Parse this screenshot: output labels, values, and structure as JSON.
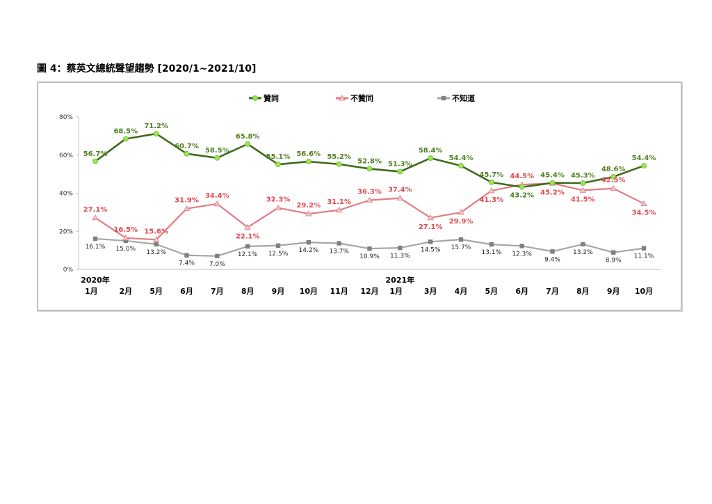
{
  "page_title": "圖 4：蔡英文總統聲望趨勢  [2020/1~2021/10]",
  "chart_data": {
    "type": "line",
    "categories": [
      {
        "line1": "2020年",
        "line2": "1月"
      },
      {
        "line1": "",
        "line2": "2月"
      },
      {
        "line1": "",
        "line2": "5月"
      },
      {
        "line1": "",
        "line2": "6月"
      },
      {
        "line1": "",
        "line2": "7月"
      },
      {
        "line1": "",
        "line2": "8月"
      },
      {
        "line1": "",
        "line2": "9月"
      },
      {
        "line1": "",
        "line2": "10月"
      },
      {
        "line1": "",
        "line2": "11月"
      },
      {
        "line1": "",
        "line2": "12月"
      },
      {
        "line1": "2021年",
        "line2": "1月"
      },
      {
        "line1": "",
        "line2": "3月"
      },
      {
        "line1": "",
        "line2": "4月"
      },
      {
        "line1": "",
        "line2": "5月"
      },
      {
        "line1": "",
        "line2": "6月"
      },
      {
        "line1": "",
        "line2": "7月"
      },
      {
        "line1": "",
        "line2": "8月"
      },
      {
        "line1": "",
        "line2": "9月"
      },
      {
        "line1": "",
        "line2": "10月"
      }
    ],
    "ylim": [
      0,
      80
    ],
    "yticks": [
      "0%",
      "20%",
      "40%",
      "60%",
      "80%"
    ],
    "ytick_values": [
      0,
      20,
      40,
      60,
      80
    ],
    "legend_position": "top",
    "series": [
      {
        "name": "贊同",
        "color": "#3d6b1a",
        "marker_color": "#99e64d",
        "marker": "circle",
        "values": [
          56.7,
          68.5,
          71.2,
          60.7,
          58.5,
          65.8,
          55.1,
          56.6,
          55.2,
          52.8,
          51.3,
          58.4,
          54.4,
          45.7,
          43.2,
          45.4,
          45.3,
          48.6,
          54.4
        ],
        "labels": [
          "56.7%",
          "68.5%",
          "71.2%",
          "60.7%",
          "58.5%",
          "65.8%",
          "55.1%",
          "56.6%",
          "55.2%",
          "52.8%",
          "51.3%",
          "58.4%",
          "54.4%",
          "45.7%",
          "43.2%",
          "45.4%",
          "45.3%",
          "48.6%",
          "54.4%"
        ]
      },
      {
        "name": "不贊同",
        "color": "#e07c82",
        "marker_color": "#f4c7c9",
        "marker": "triangle",
        "values": [
          27.1,
          16.5,
          15.6,
          31.9,
          34.4,
          22.1,
          32.3,
          29.2,
          31.1,
          36.3,
          37.4,
          27.1,
          29.9,
          41.3,
          44.5,
          45.2,
          41.5,
          42.5,
          34.5
        ],
        "labels": [
          "27.1%",
          "16.5%",
          "15.6%",
          "31.9%",
          "34.4%",
          "22.1%",
          "32.3%",
          "29.2%",
          "31.1%",
          "36.3%",
          "37.4%",
          "27.1%",
          "29.9%",
          "41.3%",
          "44.5%",
          "45.2%",
          "41.5%",
          "42.5%",
          "34.5%"
        ]
      },
      {
        "name": "不知道",
        "color": "#a6a6a6",
        "marker_color": "#808080",
        "marker": "square",
        "values": [
          16.1,
          15.0,
          13.2,
          7.4,
          7.0,
          12.1,
          12.5,
          14.2,
          13.7,
          10.9,
          11.3,
          14.5,
          15.7,
          13.1,
          12.3,
          9.4,
          13.2,
          8.9,
          11.1
        ],
        "labels": [
          "16.1%",
          "15.0%",
          "13.2%",
          "7.4%",
          "7.0%",
          "12.1%",
          "12.5%",
          "14.2%",
          "13.7%",
          "10.9%",
          "11.3%",
          "14.5%",
          "15.7%",
          "13.1%",
          "12.3%",
          "9.4%",
          "13.2%",
          "8.9%",
          "11.1%"
        ]
      }
    ]
  }
}
